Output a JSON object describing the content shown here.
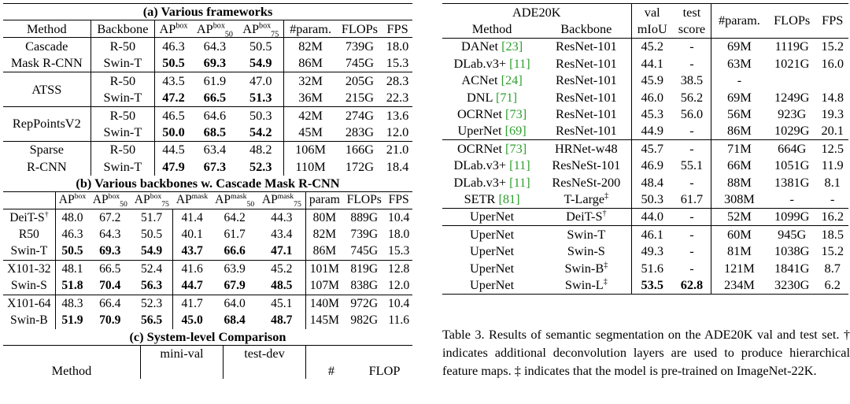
{
  "table_a": {
    "caption": "(a) Various frameworks",
    "headers": [
      "Method",
      "Backbone",
      "AP",
      "AP",
      "AP",
      "#param.",
      "FLOPs",
      "FPS"
    ],
    "header_sup": [
      "",
      "",
      "box",
      "box",
      "box",
      "",
      "",
      ""
    ],
    "header_sub": [
      "",
      "",
      "",
      "50",
      "75",
      "",
      "",
      ""
    ],
    "groups": [
      {
        "method": "Cascade",
        "method2": "Mask R-CNN",
        "rows": [
          {
            "backbone": "R-50",
            "ap": "46.3",
            "ap50": "64.3",
            "ap75": "50.5",
            "param": "82M",
            "flops": "739G",
            "fps": "18.0",
            "bold": false
          },
          {
            "backbone": "Swin-T",
            "ap": "50.5",
            "ap50": "69.3",
            "ap75": "54.9",
            "param": "86M",
            "flops": "745G",
            "fps": "15.3",
            "bold": true
          }
        ]
      },
      {
        "method": "ATSS",
        "method2": "",
        "rows": [
          {
            "backbone": "R-50",
            "ap": "43.5",
            "ap50": "61.9",
            "ap75": "47.0",
            "param": "32M",
            "flops": "205G",
            "fps": "28.3",
            "bold": false
          },
          {
            "backbone": "Swin-T",
            "ap": "47.2",
            "ap50": "66.5",
            "ap75": "51.3",
            "param": "36M",
            "flops": "215G",
            "fps": "22.3",
            "bold": true
          }
        ]
      },
      {
        "method": "RepPointsV2",
        "method2": "",
        "rows": [
          {
            "backbone": "R-50",
            "ap": "46.5",
            "ap50": "64.6",
            "ap75": "50.3",
            "param": "42M",
            "flops": "274G",
            "fps": "13.6",
            "bold": false
          },
          {
            "backbone": "Swin-T",
            "ap": "50.0",
            "ap50": "68.5",
            "ap75": "54.2",
            "param": "45M",
            "flops": "283G",
            "fps": "12.0",
            "bold": true
          }
        ]
      },
      {
        "method": "Sparse",
        "method2": "R-CNN",
        "rows": [
          {
            "backbone": "R-50",
            "ap": "44.5",
            "ap50": "63.4",
            "ap75": "48.2",
            "param": "106M",
            "flops": "166G",
            "fps": "21.0",
            "bold": false
          },
          {
            "backbone": "Swin-T",
            "ap": "47.9",
            "ap50": "67.3",
            "ap75": "52.3",
            "param": "110M",
            "flops": "172G",
            "fps": "18.4",
            "bold": true
          }
        ]
      }
    ]
  },
  "table_b": {
    "caption": "(b) Various backbones w. Cascade Mask R-CNN",
    "ap": "AP",
    "sup_box": "box",
    "sup_mask": "mask",
    "sub50": "50",
    "sub75": "75",
    "param": "param",
    "flops": "FLOPs",
    "fps": "FPS",
    "rows": [
      {
        "backbone": "DeiT-S",
        "dagger": "†",
        "v": [
          "48.0",
          "67.2",
          "51.7",
          "41.4",
          "64.2",
          "44.3"
        ],
        "param": "80M",
        "flops": "889G",
        "fps": "10.4",
        "bold": false,
        "sep": false
      },
      {
        "backbone": "R50",
        "dagger": "",
        "v": [
          "46.3",
          "64.3",
          "50.5",
          "40.1",
          "61.7",
          "43.4"
        ],
        "param": "82M",
        "flops": "739G",
        "fps": "18.0",
        "bold": false,
        "sep": false
      },
      {
        "backbone": "Swin-T",
        "dagger": "",
        "v": [
          "50.5",
          "69.3",
          "54.9",
          "43.7",
          "66.6",
          "47.1"
        ],
        "param": "86M",
        "flops": "745G",
        "fps": "15.3",
        "bold": true,
        "sep": false
      },
      {
        "backbone": "X101-32",
        "dagger": "",
        "v": [
          "48.1",
          "66.5",
          "52.4",
          "41.6",
          "63.9",
          "45.2"
        ],
        "param": "101M",
        "flops": "819G",
        "fps": "12.8",
        "bold": false,
        "sep": true
      },
      {
        "backbone": "Swin-S",
        "dagger": "",
        "v": [
          "51.8",
          "70.4",
          "56.3",
          "44.7",
          "67.9",
          "48.5"
        ],
        "param": "107M",
        "flops": "838G",
        "fps": "12.0",
        "bold": true,
        "sep": false
      },
      {
        "backbone": "X101-64",
        "dagger": "",
        "v": [
          "48.3",
          "66.4",
          "52.3",
          "41.7",
          "64.0",
          "45.1"
        ],
        "param": "140M",
        "flops": "972G",
        "fps": "10.4",
        "bold": false,
        "sep": true
      },
      {
        "backbone": "Swin-B",
        "dagger": "",
        "v": [
          "51.9",
          "70.9",
          "56.5",
          "45.0",
          "68.4",
          "48.7"
        ],
        "param": "145M",
        "flops": "982G",
        "fps": "11.6",
        "bold": true,
        "sep": false
      }
    ]
  },
  "table_c": {
    "caption": "(c) System-level Comparison",
    "col1": "mini-val",
    "col2": "test-dev",
    "method": "Method",
    "param": "#",
    "flops": "FLOP"
  },
  "table3": {
    "header": {
      "dataset": "ADE20K",
      "method": "Method",
      "backbone": "Backbone",
      "val1": "val",
      "val2": "mIoU",
      "test1": "test",
      "test2": "score",
      "param": "#param.",
      "flops": "FLOPs",
      "fps": "FPS"
    },
    "rows": [
      {
        "method": "DANet",
        "cite": "[23]",
        "backbone": "ResNet-101",
        "bsup": "",
        "val": "45.2",
        "test": "-",
        "param": "69M",
        "flops": "1119G",
        "fps": "15.2",
        "sep": false,
        "bold": false
      },
      {
        "method": "DLab.v3+",
        "cite": "[11]",
        "backbone": "ResNet-101",
        "bsup": "",
        "val": "44.1",
        "test": "-",
        "param": "63M",
        "flops": "1021G",
        "fps": "16.0",
        "sep": false,
        "bold": false
      },
      {
        "method": "ACNet",
        "cite": "[24]",
        "backbone": "ResNet-101",
        "bsup": "",
        "val": "45.9",
        "test": "38.5",
        "param": "-",
        "flops": "",
        "fps": "",
        "sep": false,
        "bold": false
      },
      {
        "method": "DNL",
        "cite": "[71]",
        "backbone": "ResNet-101",
        "bsup": "",
        "val": "46.0",
        "test": "56.2",
        "param": "69M",
        "flops": "1249G",
        "fps": "14.8",
        "sep": false,
        "bold": false
      },
      {
        "method": "OCRNet",
        "cite": "[73]",
        "backbone": "ResNet-101",
        "bsup": "",
        "val": "45.3",
        "test": "56.0",
        "param": "56M",
        "flops": "923G",
        "fps": "19.3",
        "sep": false,
        "bold": false
      },
      {
        "method": "UperNet",
        "cite": "[69]",
        "backbone": "ResNet-101",
        "bsup": "",
        "val": "44.9",
        "test": "-",
        "param": "86M",
        "flops": "1029G",
        "fps": "20.1",
        "sep": false,
        "bold": false
      },
      {
        "method": "OCRNet",
        "cite": "[73]",
        "backbone": "HRNet-w48",
        "bsup": "",
        "val": "45.7",
        "test": "-",
        "param": "71M",
        "flops": "664G",
        "fps": "12.5",
        "sep": true,
        "bold": false
      },
      {
        "method": "DLab.v3+",
        "cite": "[11]",
        "backbone": "ResNeSt-101",
        "bsup": "",
        "val": "46.9",
        "test": "55.1",
        "param": "66M",
        "flops": "1051G",
        "fps": "11.9",
        "sep": false,
        "bold": false
      },
      {
        "method": "DLab.v3+",
        "cite": "[11]",
        "backbone": "ResNeSt-200",
        "bsup": "",
        "val": "48.4",
        "test": "-",
        "param": "88M",
        "flops": "1381G",
        "fps": "8.1",
        "sep": false,
        "bold": false
      },
      {
        "method": "SETR",
        "cite": "[81]",
        "backbone": "T-Large",
        "bsup": "‡",
        "val": "50.3",
        "test": "61.7",
        "param": "308M",
        "flops": "-",
        "fps": "-",
        "sep": false,
        "bold": false
      },
      {
        "method": "UperNet",
        "cite": "",
        "backbone": "DeiT-S",
        "bsup": "†",
        "val": "44.0",
        "test": "-",
        "param": "52M",
        "flops": "1099G",
        "fps": "16.2",
        "sep": true,
        "bold": false
      },
      {
        "method": "UperNet",
        "cite": "",
        "backbone": "Swin-T",
        "bsup": "",
        "val": "46.1",
        "test": "-",
        "param": "60M",
        "flops": "945G",
        "fps": "18.5",
        "sep": true,
        "bold": false
      },
      {
        "method": "UperNet",
        "cite": "",
        "backbone": "Swin-S",
        "bsup": "",
        "val": "49.3",
        "test": "-",
        "param": "81M",
        "flops": "1038G",
        "fps": "15.2",
        "sep": false,
        "bold": false
      },
      {
        "method": "UperNet",
        "cite": "",
        "backbone": "Swin-B",
        "bsup": "‡",
        "val": "51.6",
        "test": "-",
        "param": "121M",
        "flops": "1841G",
        "fps": "8.7",
        "sep": false,
        "bold": false
      },
      {
        "method": "UperNet",
        "cite": "",
        "backbone": "Swin-L",
        "bsup": "‡",
        "val": "53.5",
        "test": "62.8",
        "param": "234M",
        "flops": "3230G",
        "fps": "6.2",
        "sep": false,
        "bold": true
      }
    ],
    "caption": "Table 3. Results of semantic segmentation on the ADE20K val and test set. † indicates additional deconvolution layers are used to produce hierarchical feature maps. ‡ indicates that the model is pre-trained on ImageNet-22K."
  }
}
